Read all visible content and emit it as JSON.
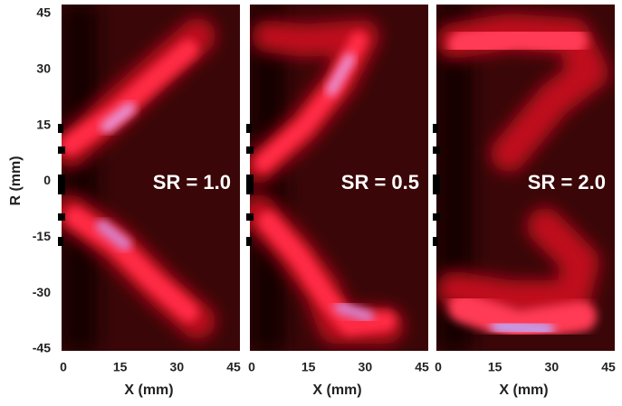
{
  "chart_data": [
    {
      "type": "image",
      "annotation": "SR = 1.0",
      "xlabel": "X (mm)",
      "xlim": [
        0,
        45
      ],
      "xticks": [
        0,
        15,
        30,
        45
      ],
      "ylabel": "R (mm)",
      "ylim": [
        -45,
        45
      ],
      "yticks": [
        45,
        30,
        15,
        0,
        -15,
        -30,
        -45
      ]
    },
    {
      "type": "image",
      "annotation": "SR = 0.5",
      "xlabel": "X (mm)",
      "xlim": [
        0,
        45
      ],
      "xticks": [
        0,
        15,
        30,
        45
      ]
    },
    {
      "type": "image",
      "annotation": "SR = 2.0",
      "xlabel": "X (mm)",
      "xlim": [
        0,
        45
      ],
      "xticks": [
        0,
        15,
        30,
        45
      ]
    }
  ]
}
